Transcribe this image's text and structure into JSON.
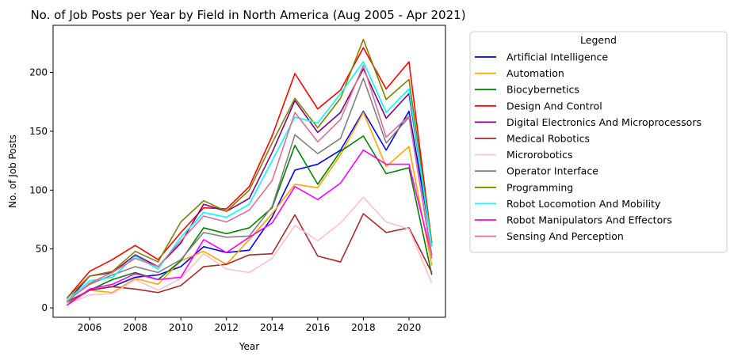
{
  "chart_data": {
    "type": "line",
    "title": "No. of Job Posts per Year by Field in North America (Aug 2005 - Apr 2021)",
    "xlabel": "Year",
    "ylabel": "No. of Job Posts",
    "xlim": [
      2004.4,
      2021.6
    ],
    "ylim": [
      -8,
      240
    ],
    "xticks": [
      2006,
      2008,
      2010,
      2012,
      2014,
      2016,
      2018,
      2020
    ],
    "yticks": [
      0,
      50,
      100,
      150,
      200
    ],
    "legend": {
      "title": "Legend",
      "placement": "outside-right"
    },
    "grid": false,
    "x": [
      2005,
      2006,
      2007,
      2008,
      2009,
      2010,
      2011,
      2012,
      2013,
      2014,
      2015,
      2016,
      2017,
      2018,
      2019,
      2020,
      2021
    ],
    "series": [
      {
        "name": "Artificial Intelligence",
        "color": "#0000ff",
        "values": [
          5,
          15,
          18,
          26,
          28,
          35,
          52,
          47,
          49,
          77,
          117,
          122,
          134,
          167,
          134,
          167,
          55
        ]
      },
      {
        "name": "Automation",
        "color": "#ffa500",
        "values": [
          5,
          15,
          13,
          25,
          20,
          40,
          48,
          37,
          58,
          80,
          105,
          102,
          130,
          166,
          120,
          137,
          36
        ]
      },
      {
        "name": "Biocybernetics",
        "color": "#008000",
        "values": [
          3,
          15,
          24,
          30,
          24,
          40,
          68,
          63,
          68,
          85,
          138,
          105,
          133,
          146,
          114,
          119,
          28
        ]
      },
      {
        "name": "Design And Control",
        "color": "#ff0000",
        "values": [
          8,
          31,
          41,
          53,
          41,
          64,
          85,
          84,
          103,
          146,
          199,
          169,
          185,
          221,
          186,
          209,
          55
        ]
      },
      {
        "name": "Digital Electronics And Microprocessors",
        "color": "#800080",
        "values": [
          5,
          27,
          30,
          45,
          35,
          55,
          88,
          82,
          93,
          132,
          176,
          149,
          166,
          203,
          161,
          182,
          55
        ]
      },
      {
        "name": "Medical Robotics",
        "color": "#a52a2a",
        "values": [
          5,
          15,
          18,
          16,
          13,
          19,
          35,
          37,
          45,
          46,
          79,
          44,
          39,
          80,
          64,
          68,
          30
        ]
      },
      {
        "name": "Microrobotics",
        "color": "#ffc0cb",
        "values": [
          3,
          11,
          12,
          24,
          15,
          25,
          46,
          33,
          30,
          42,
          70,
          57,
          72,
          94,
          73,
          67,
          21
        ]
      },
      {
        "name": "Operator Interface",
        "color": "#808080",
        "values": [
          6,
          20,
          28,
          35,
          30,
          41,
          64,
          60,
          61,
          86,
          147,
          131,
          144,
          195,
          140,
          162,
          45
        ]
      },
      {
        "name": "Programming",
        "color": "#808000",
        "values": [
          8,
          27,
          31,
          48,
          39,
          73,
          91,
          82,
          100,
          140,
          178,
          153,
          178,
          228,
          177,
          194,
          55
        ]
      },
      {
        "name": "Robot Locomotion And Mobility",
        "color": "#00ffff",
        "values": [
          6,
          23,
          26,
          44,
          33,
          60,
          81,
          77,
          88,
          125,
          162,
          157,
          182,
          209,
          166,
          186,
          52
        ]
      },
      {
        "name": "Robot Manipulators And Effectors",
        "color": "#ff00ff",
        "values": [
          2,
          16,
          20,
          29,
          24,
          26,
          58,
          47,
          60,
          72,
          103,
          92,
          106,
          134,
          122,
          122,
          44
        ]
      },
      {
        "name": "Sensing And Perception",
        "color": "#db7093",
        "values": [
          5,
          21,
          30,
          42,
          35,
          57,
          78,
          73,
          83,
          108,
          166,
          141,
          160,
          206,
          145,
          163,
          42
        ]
      }
    ]
  }
}
